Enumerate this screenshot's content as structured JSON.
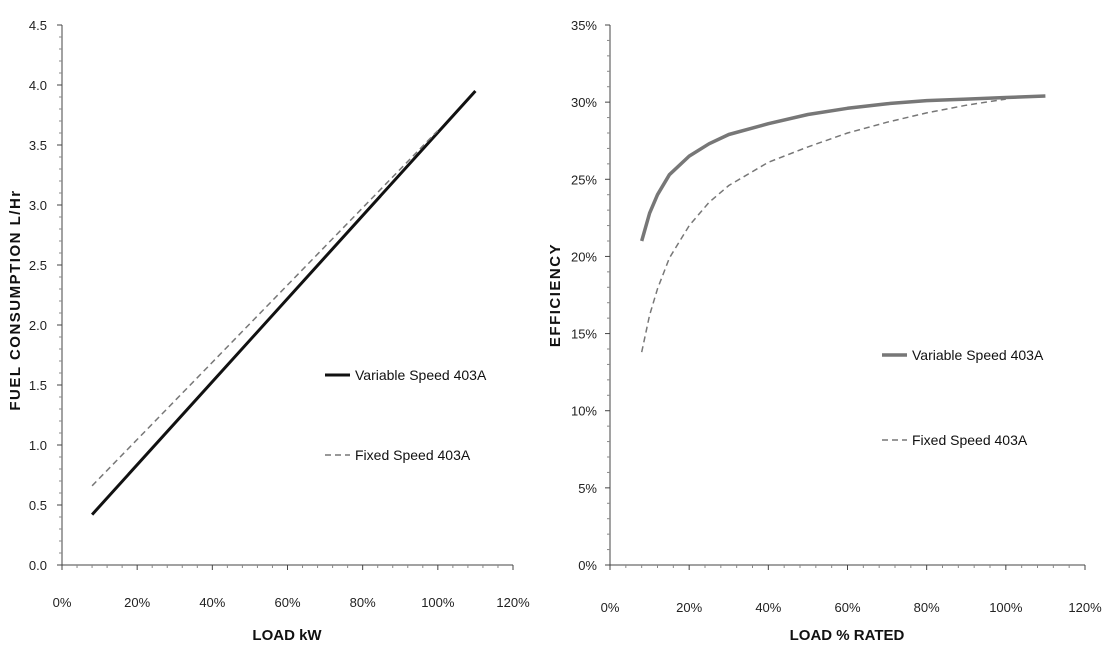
{
  "chart_data": [
    {
      "type": "line",
      "xlabel": "LOAD kW",
      "ylabel": "FUEL CONSUMPTION L/Hr",
      "xlim": [
        0,
        120
      ],
      "ylim": [
        0,
        4.5
      ],
      "x_ticks": [
        "0%",
        "20%",
        "40%",
        "60%",
        "80%",
        "100%",
        "120%"
      ],
      "y_ticks": [
        "0.0",
        "0.5",
        "1.0",
        "1.5",
        "2.0",
        "2.5",
        "3.0",
        "3.5",
        "4.0",
        "4.5"
      ],
      "grid": false,
      "legend_position": "right",
      "series": [
        {
          "name": "Variable Speed 403A",
          "color": "#111111",
          "dash": "solid",
          "width": 3,
          "x": [
            8,
            110
          ],
          "y": [
            0.42,
            3.95
          ]
        },
        {
          "name": "Fixed Speed 403A",
          "color": "#777777",
          "dash": "dashed",
          "width": 1.5,
          "x": [
            8,
            100
          ],
          "y": [
            0.66,
            3.62
          ]
        }
      ]
    },
    {
      "type": "line",
      "xlabel": "LOAD % RATED",
      "ylabel": "EFFICIENCY",
      "xlim": [
        0,
        120
      ],
      "ylim": [
        0,
        35
      ],
      "x_ticks": [
        "0%",
        "20%",
        "40%",
        "60%",
        "80%",
        "100%",
        "120%"
      ],
      "y_ticks": [
        "0%",
        "5%",
        "10%",
        "15%",
        "20%",
        "25%",
        "30%",
        "35%"
      ],
      "grid": false,
      "legend_position": "right",
      "series": [
        {
          "name": "Variable Speed 403A",
          "color": "#777777",
          "dash": "solid",
          "width": 3.5,
          "x": [
            8,
            10,
            12,
            15,
            20,
            25,
            30,
            40,
            50,
            60,
            70,
            80,
            90,
            100,
            110
          ],
          "y": [
            21.0,
            22.8,
            24.0,
            25.3,
            26.5,
            27.3,
            27.9,
            28.6,
            29.2,
            29.6,
            29.9,
            30.1,
            30.2,
            30.3,
            30.4
          ]
        },
        {
          "name": "Fixed Speed 403A",
          "color": "#777777",
          "dash": "dashed",
          "width": 1.5,
          "x": [
            8,
            10,
            12,
            15,
            20,
            25,
            30,
            40,
            50,
            60,
            70,
            80,
            90,
            100
          ],
          "y": [
            13.8,
            16.2,
            17.9,
            19.9,
            22.0,
            23.5,
            24.6,
            26.1,
            27.1,
            28.0,
            28.7,
            29.3,
            29.8,
            30.2
          ]
        }
      ]
    }
  ]
}
